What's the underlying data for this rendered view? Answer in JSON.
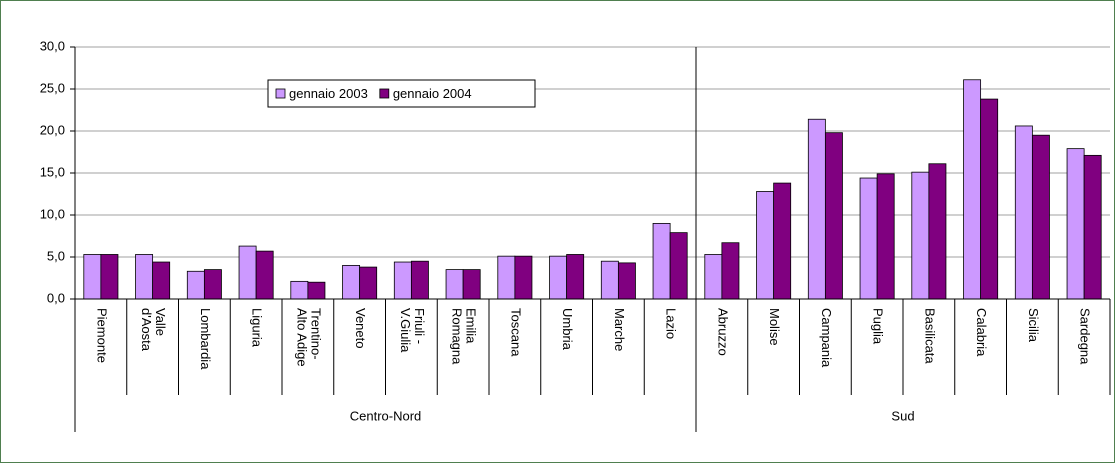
{
  "chart_data": {
    "type": "bar",
    "groups": [
      {
        "name": "Centro-Nord",
        "categories": [
          [
            "Piemonte"
          ],
          [
            "Valle",
            "d'Aosta"
          ],
          [
            "Lombardia"
          ],
          [
            "Liguria"
          ],
          [
            "Trentino-",
            "Alto Adige"
          ],
          [
            "Veneto"
          ],
          [
            "Friuli -",
            "V.Giulia"
          ],
          [
            "Emilia",
            "Romagna"
          ],
          [
            "Toscana"
          ],
          [
            "Umbria"
          ],
          [
            "Marche"
          ],
          [
            "Lazio"
          ]
        ]
      },
      {
        "name": "Sud",
        "categories": [
          [
            "Abruzzo"
          ],
          [
            "Molise"
          ],
          [
            "Campania"
          ],
          [
            "Puglia"
          ],
          [
            "Basilicata"
          ],
          [
            "Calabria"
          ],
          [
            "Sicilia"
          ],
          [
            "Sardegna"
          ]
        ]
      }
    ],
    "series": [
      {
        "name": "gennaio 2003",
        "color": "#cc99ff",
        "values": [
          5.3,
          5.3,
          3.3,
          6.3,
          2.1,
          4.0,
          4.4,
          3.5,
          5.1,
          5.1,
          4.5,
          9.0,
          5.3,
          12.8,
          21.4,
          14.4,
          15.1,
          26.1,
          20.6,
          17.9
        ]
      },
      {
        "name": "gennaio 2004",
        "color": "#800080",
        "values": [
          5.3,
          4.4,
          3.5,
          5.7,
          2.0,
          3.8,
          4.5,
          3.5,
          5.1,
          5.3,
          4.3,
          7.9,
          6.7,
          13.8,
          19.8,
          14.9,
          16.1,
          23.8,
          19.5,
          17.1
        ]
      }
    ],
    "ylim": [
      0,
      30
    ],
    "yticks": [
      {
        "value": 0,
        "label": "0,0"
      },
      {
        "value": 5,
        "label": "5,0"
      },
      {
        "value": 10,
        "label": "10,0"
      },
      {
        "value": 15,
        "label": "15,0"
      },
      {
        "value": 20,
        "label": "20,0"
      },
      {
        "value": 25,
        "label": "25,0"
      },
      {
        "value": 30,
        "label": "30,0"
      }
    ],
    "grid": true
  }
}
